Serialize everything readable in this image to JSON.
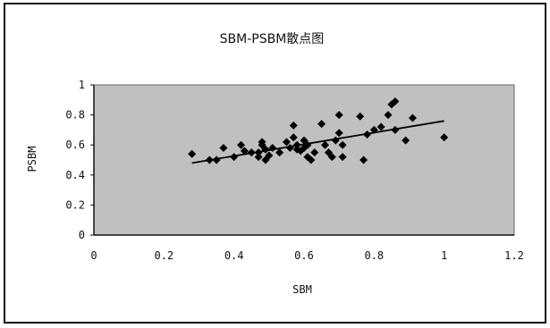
{
  "chart_data": {
    "type": "scatter",
    "title": "SBM-PSBM散点图",
    "xlabel": "SBM",
    "ylabel": "PSBM",
    "xlim": [
      0,
      1.2
    ],
    "ylim": [
      0,
      1
    ],
    "xticks": [
      "0",
      "0.2",
      "0.4",
      "0.6",
      "0.8",
      "1",
      "1.2"
    ],
    "yticks": [
      "0",
      "0.2",
      "0.4",
      "0.6",
      "0.8",
      "1"
    ],
    "grid": false,
    "plot_background": "#c0c0c0",
    "marker_color": "#000000",
    "points": [
      [
        0.28,
        0.54
      ],
      [
        0.33,
        0.5
      ],
      [
        0.35,
        0.5
      ],
      [
        0.37,
        0.58
      ],
      [
        0.4,
        0.52
      ],
      [
        0.42,
        0.6
      ],
      [
        0.43,
        0.56
      ],
      [
        0.45,
        0.55
      ],
      [
        0.47,
        0.52
      ],
      [
        0.47,
        0.55
      ],
      [
        0.48,
        0.6
      ],
      [
        0.48,
        0.62
      ],
      [
        0.49,
        0.5
      ],
      [
        0.49,
        0.57
      ],
      [
        0.5,
        0.53
      ],
      [
        0.51,
        0.58
      ],
      [
        0.53,
        0.55
      ],
      [
        0.55,
        0.62
      ],
      [
        0.56,
        0.58
      ],
      [
        0.57,
        0.73
      ],
      [
        0.57,
        0.65
      ],
      [
        0.58,
        0.57
      ],
      [
        0.58,
        0.6
      ],
      [
        0.59,
        0.56
      ],
      [
        0.6,
        0.63
      ],
      [
        0.6,
        0.58
      ],
      [
        0.61,
        0.6
      ],
      [
        0.61,
        0.52
      ],
      [
        0.62,
        0.5
      ],
      [
        0.63,
        0.55
      ],
      [
        0.65,
        0.74
      ],
      [
        0.66,
        0.6
      ],
      [
        0.67,
        0.55
      ],
      [
        0.68,
        0.52
      ],
      [
        0.69,
        0.63
      ],
      [
        0.7,
        0.8
      ],
      [
        0.7,
        0.68
      ],
      [
        0.71,
        0.6
      ],
      [
        0.71,
        0.52
      ],
      [
        0.76,
        0.79
      ],
      [
        0.77,
        0.5
      ],
      [
        0.78,
        0.67
      ],
      [
        0.8,
        0.7
      ],
      [
        0.82,
        0.72
      ],
      [
        0.84,
        0.8
      ],
      [
        0.85,
        0.87
      ],
      [
        0.86,
        0.89
      ],
      [
        0.86,
        0.7
      ],
      [
        0.89,
        0.63
      ],
      [
        0.91,
        0.78
      ],
      [
        1.0,
        0.65
      ]
    ],
    "trendline": {
      "x": [
        0.28,
        1.0
      ],
      "y": [
        0.48,
        0.76
      ]
    }
  }
}
